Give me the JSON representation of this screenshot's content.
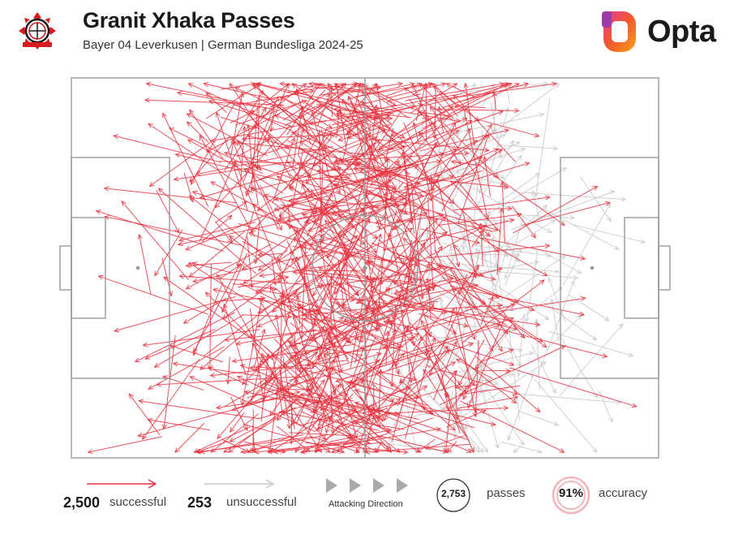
{
  "header": {
    "title": "Granit Xhaka Passes",
    "subtitle": "Bayer 04 Leverkusen | German Bundesliga 2024-25",
    "brand": "Opta"
  },
  "colors": {
    "successful": "#e8323f",
    "unsuccessful": "#c8c8c8",
    "pitch_lines": "#9a9a9a",
    "accuracy_ring": "#f3b7bb"
  },
  "legend": {
    "successful_count": "2,500",
    "successful_label": "successful",
    "unsuccessful_count": "253",
    "unsuccessful_label": "unsuccessful",
    "direction_label": "Attacking Direction",
    "passes_count": "2,753",
    "passes_label": "passes",
    "accuracy_value": "91%",
    "accuracy_label": "accuracy"
  },
  "chart_data": {
    "type": "pass map",
    "title": "Granit Xhaka Passes",
    "subtitle": "Bayer 04 Leverkusen | German Bundesliga 2024-25",
    "pitch": {
      "length": 105,
      "width": 68,
      "attacking_direction": "left-to-right"
    },
    "series": [
      {
        "name": "successful",
        "count": 2500,
        "color": "#e8323f"
      },
      {
        "name": "unsuccessful",
        "count": 253,
        "color": "#c8c8c8"
      }
    ],
    "total_passes": 2753,
    "accuracy_percent": 91
  }
}
